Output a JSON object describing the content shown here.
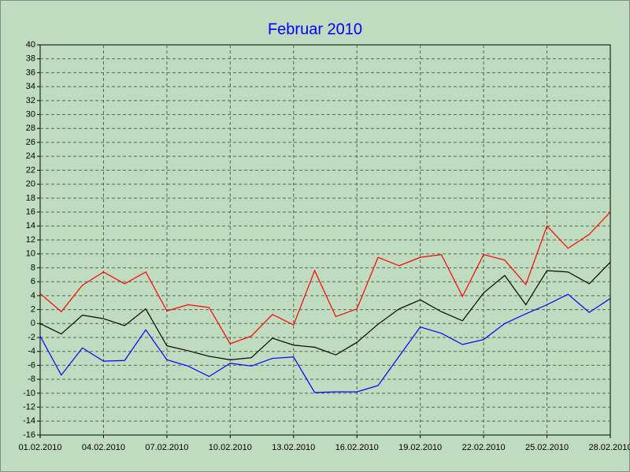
{
  "chart_data": {
    "type": "line",
    "title": "Februar 2010",
    "categories": [
      "01.02.2010",
      null,
      null,
      "04.02.2010",
      null,
      null,
      "07.02.2010",
      null,
      null,
      "10.02.2010",
      null,
      null,
      "13.02.2010",
      null,
      null,
      "16.02.2010",
      null,
      null,
      "19.02.2010",
      null,
      null,
      "22.02.2010",
      null,
      null,
      "25.02.2010",
      null,
      null,
      "28.02.2010"
    ],
    "series": [
      {
        "color": "#ff0000",
        "values": [
          4.3,
          1.7,
          5.5,
          7.4,
          5.7,
          7.4,
          1.8,
          2.7,
          2.3,
          -2.9,
          -1.8,
          1.3,
          -0.2,
          7.6,
          1.0,
          2.1,
          9.5,
          8.3,
          9.5,
          9.9,
          3.9,
          9.9,
          9.1,
          5.6,
          14.0,
          10.8,
          12.8,
          16.0
        ]
      },
      {
        "color": "#000000",
        "values": [
          0,
          -1.5,
          1.2,
          0.7,
          -0.3,
          2.1,
          -3.2,
          -3.9,
          -4.7,
          -5.2,
          -4.9,
          -2.1,
          -3.1,
          -3.4,
          -4.5,
          -2.7,
          -0.1,
          2.1,
          3.4,
          1.7,
          0.4,
          4.4,
          6.9,
          2.7,
          7.6,
          7.4,
          5.7,
          8.8
        ]
      },
      {
        "color": "#0000ff",
        "values": [
          -1.8,
          -7.4,
          -3.5,
          -5.4,
          -5.3,
          -0.9,
          -5.2,
          -6.1,
          -7.6,
          -5.7,
          -6.1,
          -5.0,
          -4.8,
          -9.9,
          -9.8,
          -9.8,
          -8.9,
          -4.7,
          -0.5,
          -1.4,
          -3.0,
          -2.3,
          0,
          1.4,
          2.7,
          4.2,
          1.6,
          3.6
        ]
      }
    ],
    "ylim": [
      -16,
      40
    ],
    "yticks": [
      -16,
      -14,
      -12,
      -10,
      -8,
      -6,
      -4,
      -2,
      0,
      2,
      4,
      6,
      8,
      10,
      12,
      14,
      16,
      18,
      20,
      22,
      24,
      26,
      28,
      30,
      32,
      34,
      36,
      38,
      40
    ],
    "grid": true
  }
}
